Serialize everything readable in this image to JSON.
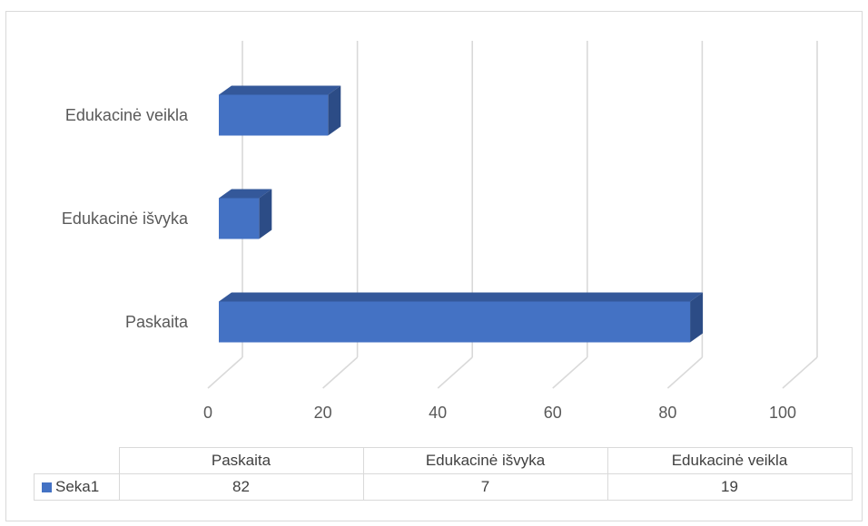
{
  "chart_data": {
    "type": "bar",
    "orientation": "horizontal",
    "three_d": true,
    "categories": [
      "Paskaita",
      "Edukacinė išvyka",
      "Edukacinė veikla"
    ],
    "series": [
      {
        "name": "Seka1",
        "values": [
          82,
          7,
          19
        ],
        "color": "#4472c4"
      }
    ],
    "xlim": [
      0,
      100
    ],
    "x_ticks": [
      "0",
      "20",
      "40",
      "60",
      "80",
      "100"
    ],
    "grid": true,
    "legend": "data-table",
    "data_table": {
      "header": [
        "Paskaita",
        "Edukacinė išvyka",
        "Edukacinė veikla"
      ],
      "rows": [
        {
          "series": "Seka1",
          "values": [
            "82",
            "7",
            "19"
          ]
        }
      ]
    }
  }
}
